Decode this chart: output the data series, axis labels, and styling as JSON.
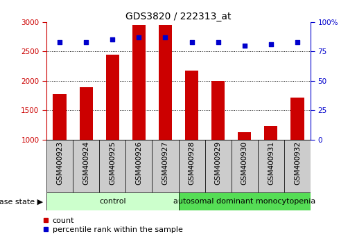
{
  "title": "GDS3820 / 222313_at",
  "samples": [
    "GSM400923",
    "GSM400924",
    "GSM400925",
    "GSM400926",
    "GSM400927",
    "GSM400928",
    "GSM400929",
    "GSM400930",
    "GSM400931",
    "GSM400932"
  ],
  "counts": [
    1780,
    1890,
    2450,
    2950,
    2950,
    2180,
    2000,
    1130,
    1230,
    1720
  ],
  "percentiles": [
    83,
    83,
    85,
    87,
    87,
    83,
    83,
    80,
    81,
    83
  ],
  "bar_color": "#cc0000",
  "scatter_color": "#0000cc",
  "ylim_left": [
    1000,
    3000
  ],
  "ylim_right": [
    0,
    100
  ],
  "yticks_left": [
    1000,
    1500,
    2000,
    2500,
    3000
  ],
  "yticks_right": [
    0,
    25,
    50,
    75,
    100
  ],
  "ytick_labels_right": [
    "0",
    "25",
    "50",
    "75",
    "100%"
  ],
  "control_samples": 5,
  "group1_label": "control",
  "group2_label": "autosomal dominant monocytopenia",
  "group1_color": "#ccffcc",
  "group2_color": "#55dd55",
  "disease_state_label": "disease state",
  "legend_count_label": "count",
  "legend_percentile_label": "percentile rank within the sample",
  "bar_width": 0.5,
  "title_fontsize": 10,
  "tick_fontsize": 7.5,
  "label_fontsize": 8,
  "group_fontsize": 8,
  "xtick_box_color": "#cccccc"
}
